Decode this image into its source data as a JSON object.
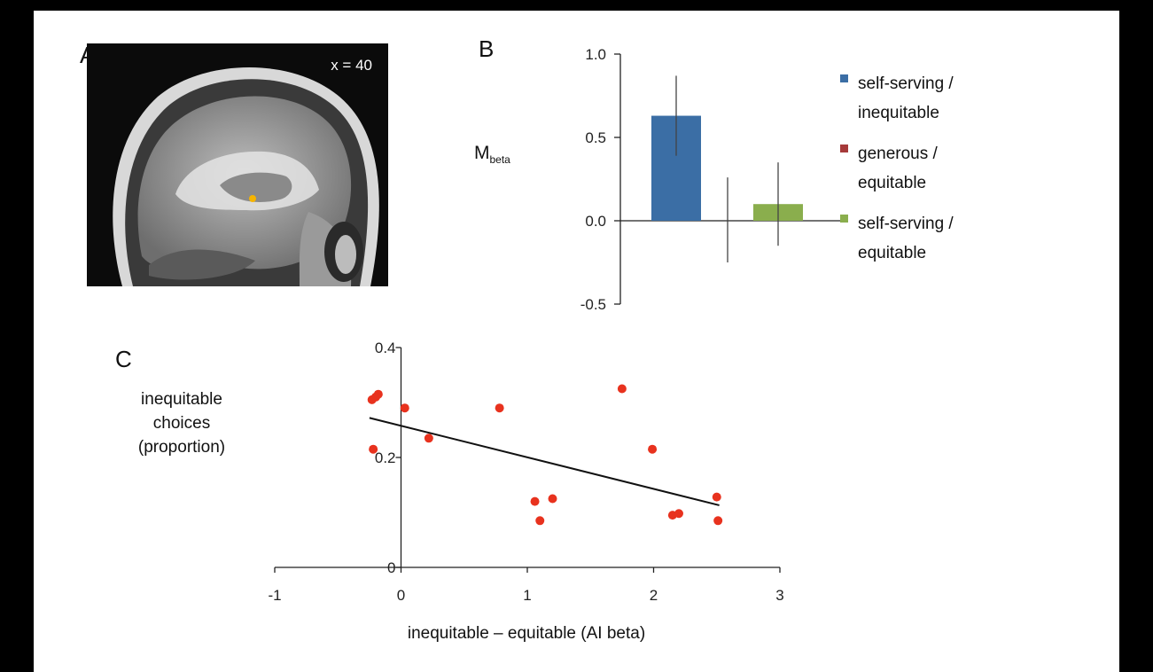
{
  "figure": {
    "panel_labels": {
      "a": "A",
      "b": "B",
      "c": "C"
    },
    "brain": {
      "coordinate": "x = 40",
      "marker_color": "#f5b400"
    }
  },
  "chart_data": [
    {
      "type": "bar",
      "panel": "B",
      "ylabel_main": "M",
      "ylabel_sub": "beta",
      "ylim": [
        -0.5,
        1.0
      ],
      "yticks": [
        1.0,
        0.5,
        0.0,
        -0.5
      ],
      "ytick_labels": [
        "1.0",
        "0.5",
        "0.0",
        "-0.5"
      ],
      "legend_placement": "right",
      "bars": [
        {
          "name": "self-serving / inequitable",
          "label_line1": "self-serving /",
          "label_line2": "inequitable",
          "value": 0.63,
          "err_low": 0.39,
          "err_high": 0.87,
          "color": "#3b6ea5"
        },
        {
          "name": "generous / equitable",
          "label_line1": "generous /",
          "label_line2": "equitable",
          "value": 0.0,
          "err_low": -0.25,
          "err_high": 0.26,
          "color": "#a63a3a"
        },
        {
          "name": "self-serving / equitable",
          "label_line1": "self-serving /",
          "label_line2": "equitable",
          "value": 0.1,
          "err_low": -0.15,
          "err_high": 0.35,
          "color": "#8aae4d"
        }
      ]
    },
    {
      "type": "scatter",
      "panel": "C",
      "xlabel": "inequitable – equitable (AI beta)",
      "ylabel_lines": [
        "inequitable",
        "choices",
        "(proportion)"
      ],
      "xlim": [
        -1,
        3
      ],
      "ylim": [
        0,
        0.4
      ],
      "xticks": [
        -1,
        0,
        1,
        2,
        3
      ],
      "xtick_labels": [
        "-1",
        "0",
        "1",
        "2",
        "3"
      ],
      "yticks": [
        0,
        0.2,
        0.4
      ],
      "ytick_labels": [
        "0",
        "0.2",
        "0.4"
      ],
      "point_color": "#e8321e",
      "points": [
        {
          "x": -0.23,
          "y": 0.305
        },
        {
          "x": -0.2,
          "y": 0.31
        },
        {
          "x": -0.18,
          "y": 0.315
        },
        {
          "x": -0.22,
          "y": 0.215
        },
        {
          "x": 0.03,
          "y": 0.29
        },
        {
          "x": 0.22,
          "y": 0.235
        },
        {
          "x": 0.78,
          "y": 0.29
        },
        {
          "x": 1.06,
          "y": 0.12
        },
        {
          "x": 1.1,
          "y": 0.085
        },
        {
          "x": 1.2,
          "y": 0.125
        },
        {
          "x": 1.75,
          "y": 0.325
        },
        {
          "x": 1.99,
          "y": 0.215
        },
        {
          "x": 2.15,
          "y": 0.095
        },
        {
          "x": 2.2,
          "y": 0.098
        },
        {
          "x": 2.5,
          "y": 0.128
        },
        {
          "x": 2.51,
          "y": 0.085
        }
      ],
      "fit_line": {
        "x": [
          -0.25,
          2.52
        ],
        "y": [
          0.272,
          0.113
        ]
      }
    }
  ]
}
